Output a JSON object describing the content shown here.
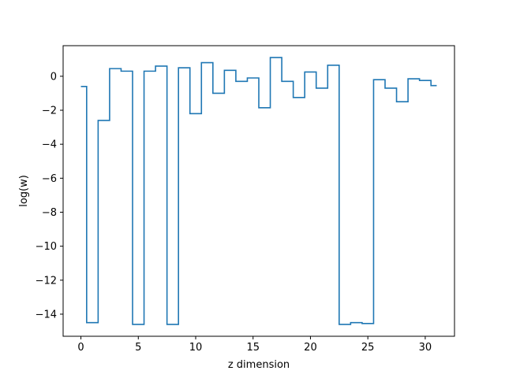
{
  "chart_data": {
    "type": "line",
    "step": "mid",
    "title": "",
    "xlabel": "z dimension",
    "ylabel": "log(w)",
    "xlim": [
      -1.55,
      32.55
    ],
    "ylim": [
      -15.3,
      1.8
    ],
    "xticks": [
      0,
      5,
      10,
      15,
      20,
      25,
      30
    ],
    "yticks": [
      -14,
      -12,
      -10,
      -8,
      -6,
      -4,
      -2,
      0
    ],
    "grid": false,
    "colors": {
      "series": "#1f77b4"
    },
    "series": [
      {
        "x": [
          0,
          1,
          2,
          3,
          4,
          5,
          6,
          7,
          8,
          9,
          10,
          11,
          12,
          13,
          14,
          15,
          16,
          17,
          18,
          19,
          20,
          21,
          22,
          23,
          24,
          25,
          26,
          27,
          28,
          29,
          30,
          31
        ],
        "y": [
          -0.6,
          -14.5,
          -2.6,
          0.45,
          0.3,
          -14.6,
          0.3,
          0.6,
          -14.6,
          0.5,
          -2.2,
          0.8,
          -1.0,
          0.35,
          -0.3,
          -0.1,
          -1.85,
          1.1,
          -0.3,
          -1.25,
          0.25,
          -0.7,
          0.65,
          -14.6,
          -14.5,
          -14.55,
          -0.2,
          -0.7,
          -1.5,
          -0.15,
          -0.25,
          -0.55
        ]
      }
    ]
  }
}
